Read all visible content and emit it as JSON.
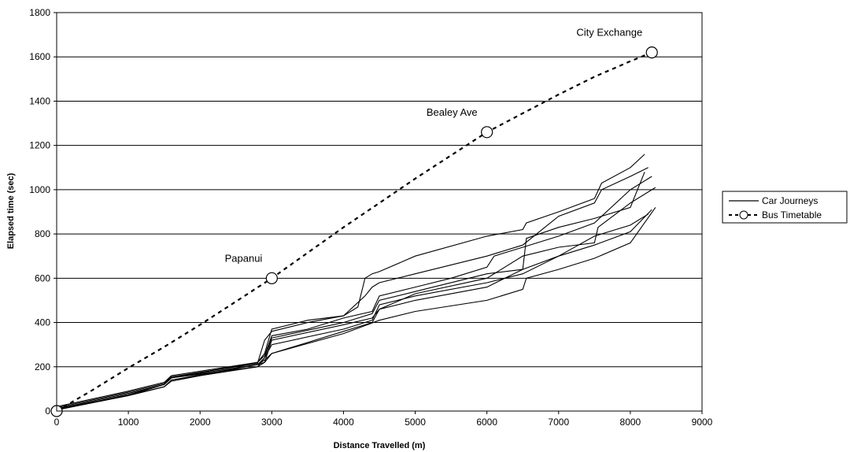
{
  "chart_data": {
    "type": "line",
    "xlabel": "Distance Travelled (m)",
    "ylabel": "Elapsed time (sec)",
    "xlim": [
      0,
      9000
    ],
    "ylim": [
      0,
      1800
    ],
    "xticks": [
      "0",
      "1000",
      "2000",
      "3000",
      "4000",
      "5000",
      "6000",
      "7000",
      "8000",
      "9000"
    ],
    "yticks": [
      "0",
      "200",
      "400",
      "600",
      "800",
      "1000",
      "1200",
      "1400",
      "1600",
      "1800"
    ],
    "grid": "horizontal",
    "legend_position": "right",
    "series": [
      {
        "name": "Car Journeys",
        "style": "solid",
        "color": "#000000",
        "runs": [
          {
            "x": [
              0,
              1000,
              1500,
              1600,
              2800,
              2850,
              2900,
              3000,
              3500,
              4000,
              4200,
              4300,
              4400,
              4500,
              5000,
              6000,
              6500,
              6550,
              7000,
              7500,
              7600,
              8000,
              8200
            ],
            "y": [
              20,
              90,
              130,
              160,
              220,
              240,
              260,
              370,
              410,
              430,
              470,
              600,
              620,
              630,
              700,
              790,
              820,
              850,
              900,
              960,
              1030,
              1100,
              1160
            ]
          },
          {
            "x": [
              0,
              1000,
              1500,
              1600,
              2800,
              2900,
              3000,
              3500,
              4000,
              4300,
              4400,
              4500,
              5000,
              6000,
              6500,
              7000,
              7500,
              7600,
              8000,
              8250
            ],
            "y": [
              15,
              85,
              125,
              155,
              215,
              320,
              360,
              400,
              430,
              520,
              560,
              580,
              620,
              700,
              750,
              880,
              940,
              1000,
              1060,
              1100
            ]
          },
          {
            "x": [
              0,
              1000,
              1500,
              1600,
              2800,
              2900,
              3000,
              3500,
              4000,
              4400,
              4500,
              5000,
              5500,
              6000,
              6100,
              6500,
              7000,
              7500,
              8000,
              8300
            ],
            "y": [
              10,
              80,
              120,
              150,
              220,
              250,
              340,
              370,
              420,
              450,
              520,
              560,
              600,
              650,
              700,
              740,
              790,
              850,
              1000,
              1060
            ]
          },
          {
            "x": [
              0,
              1000,
              1500,
              1600,
              2800,
              2900,
              3000,
              4000,
              4400,
              4500,
              5000,
              6000,
              6500,
              6550,
              7000,
              7500,
              8000,
              8200
            ],
            "y": [
              10,
              70,
              120,
              150,
              210,
              240,
              330,
              400,
              440,
              500,
              540,
              620,
              640,
              780,
              830,
              870,
              920,
              1080
            ]
          },
          {
            "x": [
              0,
              1000,
              1500,
              1600,
              2800,
              2900,
              3000,
              4000,
              4400,
              4500,
              5000,
              6000,
              6500,
              7000,
              7500,
              7550,
              8000,
              8350
            ],
            "y": [
              10,
              70,
              110,
              140,
              210,
              220,
              320,
              390,
              420,
              460,
              530,
              600,
              700,
              740,
              760,
              830,
              940,
              1010
            ]
          },
          {
            "x": [
              0,
              1000,
              1500,
              1600,
              2800,
              2900,
              3000,
              4000,
              4400,
              4500,
              5000,
              6000,
              6500,
              7000,
              7500,
              8000,
              8250
            ],
            "y": [
              5,
              75,
              120,
              150,
              200,
              240,
              300,
              370,
              410,
              480,
              520,
              580,
              620,
              700,
              790,
              840,
              890
            ]
          },
          {
            "x": [
              0,
              1000,
              1500,
              1600,
              2800,
              2900,
              3000,
              4000,
              4400,
              4500,
              5000,
              6000,
              6500,
              7000,
              7500,
              8000,
              8300
            ],
            "y": [
              5,
              70,
              110,
              135,
              210,
              230,
              260,
              360,
              400,
              460,
              500,
              560,
              640,
              700,
              750,
              810,
              910
            ]
          },
          {
            "x": [
              0,
              1000,
              1500,
              1600,
              2800,
              2900,
              3000,
              4000,
              4500,
              5000,
              6000,
              6500,
              6550,
              7000,
              7500,
              8000,
              8350
            ],
            "y": [
              5,
              70,
              110,
              140,
              200,
              220,
              260,
              350,
              410,
              450,
              500,
              550,
              600,
              640,
              690,
              760,
              920
            ]
          }
        ]
      },
      {
        "name": "Bus Timetable",
        "style": "dashed",
        "color": "#000000",
        "marker": "circle",
        "x": [
          0,
          500,
          1000,
          1500,
          2000,
          2500,
          3000,
          3500,
          4000,
          4500,
          5000,
          5500,
          6000,
          6500,
          7000,
          7500,
          8000,
          8300
        ],
        "y": [
          0,
          95,
          195,
          290,
          390,
          495,
          600,
          715,
          830,
          940,
          1050,
          1155,
          1260,
          1345,
          1430,
          1510,
          1580,
          1620
        ],
        "markers": [
          {
            "x": 0,
            "y": 0,
            "label": ""
          },
          {
            "x": 3000,
            "y": 600,
            "label": "Papanui"
          },
          {
            "x": 6000,
            "y": 1260,
            "label": "Bealey Ave"
          },
          {
            "x": 8300,
            "y": 1620,
            "label": "City Exchange"
          }
        ]
      }
    ]
  }
}
